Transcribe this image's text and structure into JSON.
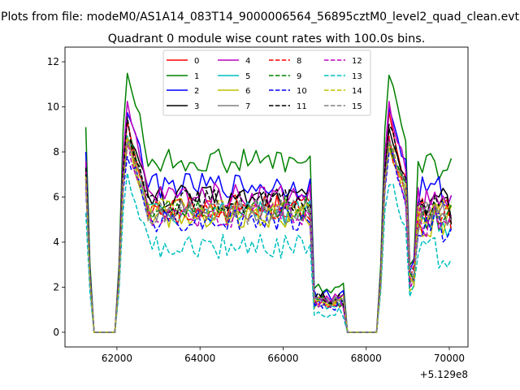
{
  "chart_data": {
    "type": "line",
    "suptitle": "Plots from file: modeM0/AS1A14_083T14_9000006564_56895cztM0_level2_quad_clean.evt",
    "title": "Quadrant 0 module wise count rates with 100.0s bins.",
    "xlabel": "",
    "ylabel": "",
    "x_offset_label": "+5.129e8",
    "xlim": [
      60750,
      70450
    ],
    "ylim": [
      -0.65,
      12.65
    ],
    "xticks": [
      62000,
      64000,
      66000,
      68000,
      70000
    ],
    "xtick_labels": [
      "62000",
      "64000",
      "66000",
      "68000",
      "70000"
    ],
    "yticks": [
      0,
      2,
      4,
      6,
      8,
      10,
      12
    ],
    "ytick_labels": [
      "0",
      "2",
      "4",
      "6",
      "8",
      "10",
      "12"
    ],
    "legend_location": "upper center",
    "series": [
      {
        "name": "0",
        "color": "#ff0000",
        "style": "solid",
        "base": 5.6,
        "spike": 9.8,
        "scale": 1.0
      },
      {
        "name": "1",
        "color": "#008000",
        "style": "solid",
        "base": 7.6,
        "spike": 12.05,
        "scale": 1.0
      },
      {
        "name": "2",
        "color": "#0000ff",
        "style": "solid",
        "base": 6.5,
        "spike": 10.35,
        "scale": 1.0
      },
      {
        "name": "3",
        "color": "#000000",
        "style": "solid",
        "base": 6.0,
        "spike": 9.2,
        "scale": 1.0
      },
      {
        "name": "4",
        "color": "#bf00bf",
        "style": "solid",
        "base": 6.1,
        "spike": 10.3,
        "scale": 1.0
      },
      {
        "name": "5",
        "color": "#00bfbf",
        "style": "solid",
        "base": 5.3,
        "spike": 8.8,
        "scale": 1.0
      },
      {
        "name": "6",
        "color": "#bfbf00",
        "style": "solid",
        "base": 5.2,
        "spike": 8.6,
        "scale": 1.0
      },
      {
        "name": "7",
        "color": "#808080",
        "style": "solid",
        "base": 5.4,
        "spike": 8.9,
        "scale": 1.0
      },
      {
        "name": "8",
        "color": "#ff0000",
        "style": "dashed",
        "base": 5.3,
        "spike": 8.7,
        "scale": 1.0
      },
      {
        "name": "9",
        "color": "#008000",
        "style": "dashed",
        "base": 5.5,
        "spike": 9.0,
        "scale": 1.0
      },
      {
        "name": "10",
        "color": "#0000ff",
        "style": "dashed",
        "base": 5.0,
        "spike": 8.4,
        "scale": 1.0
      },
      {
        "name": "11",
        "color": "#000000",
        "style": "dashed",
        "base": 5.8,
        "spike": 9.5,
        "scale": 1.0
      },
      {
        "name": "12",
        "color": "#bf00bf",
        "style": "dashed",
        "base": 5.2,
        "spike": 8.6,
        "scale": 1.0
      },
      {
        "name": "13",
        "color": "#00bfbf",
        "style": "dashed",
        "base": 3.8,
        "spike": 7.2,
        "scale": 0.8
      },
      {
        "name": "14",
        "color": "#bfbf00",
        "style": "dashed",
        "base": 5.4,
        "spike": 8.9,
        "scale": 1.0
      },
      {
        "name": "15",
        "color": "#808080",
        "style": "dashed",
        "base": 5.3,
        "spike": 8.8,
        "scale": 1.0
      }
    ]
  }
}
